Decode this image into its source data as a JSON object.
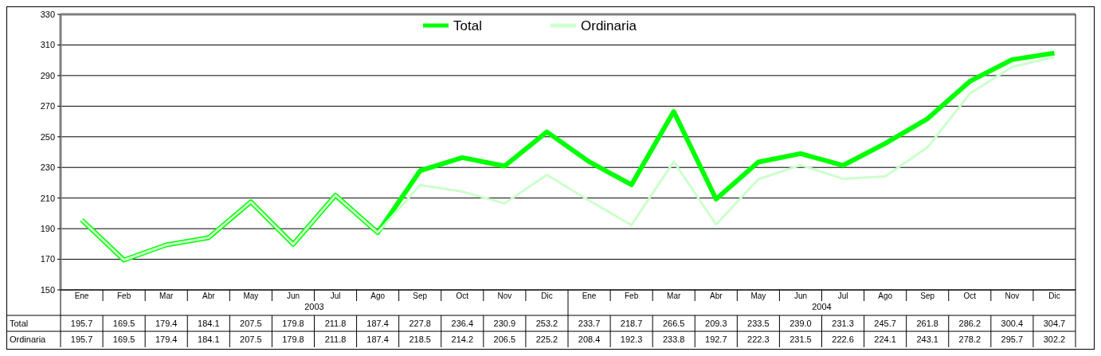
{
  "chart_data": {
    "type": "line",
    "categories": [
      "Ene",
      "Feb",
      "Mar",
      "Abr",
      "May",
      "Jun",
      "Jul",
      "Ago",
      "Sep",
      "Oct",
      "Nov",
      "Dic",
      "Ene",
      "Feb",
      "Mar",
      "Abr",
      "May",
      "Jun",
      "Jul",
      "Ago",
      "Sep",
      "Oct",
      "Nov",
      "Dic"
    ],
    "series": [
      {
        "name": "Total",
        "color": "#00ff00",
        "values": [
          195.7,
          169.5,
          179.4,
          184.1,
          207.5,
          179.8,
          211.8,
          187.4,
          227.8,
          236.4,
          230.9,
          253.2,
          233.7,
          218.7,
          266.5,
          209.3,
          233.5,
          239.0,
          231.3,
          245.7,
          261.8,
          286.2,
          300.4,
          304.7
        ],
        "value_labels": [
          "195.7",
          "169.5",
          "179.4",
          "184.1",
          "207.5",
          "179.8",
          "211.8",
          "187.4",
          "227.8",
          "236.4",
          "230.9",
          "253.2",
          "233.7",
          "218.7",
          "266.5",
          "209.3",
          "233.5",
          "239.0",
          "231.3",
          "245.7",
          "261.8",
          "286.2",
          "300.4",
          "304.7"
        ]
      },
      {
        "name": "Ordinaria",
        "color": "#ccffcc",
        "values": [
          195.7,
          169.5,
          179.4,
          184.1,
          207.5,
          179.8,
          211.8,
          187.4,
          218.5,
          214.2,
          206.5,
          225.2,
          208.4,
          192.3,
          233.8,
          192.7,
          222.3,
          231.5,
          222.6,
          224.1,
          243.1,
          278.2,
          295.7,
          302.2
        ],
        "value_labels": [
          "195.7",
          "169.5",
          "179.4",
          "184.1",
          "207.5",
          "179.8",
          "211.8",
          "187.4",
          "218.5",
          "214.2",
          "206.5",
          "225.2",
          "208.4",
          "192.3",
          "233.8",
          "192.7",
          "222.3",
          "231.5",
          "222.6",
          "224.1",
          "243.1",
          "278.2",
          "295.7",
          "302.2"
        ]
      }
    ],
    "annotations": [
      "2003",
      "2004"
    ],
    "ylim": [
      150,
      330
    ],
    "yticks": [
      150,
      170,
      190,
      210,
      230,
      250,
      270,
      290,
      310,
      330
    ],
    "grid": "y",
    "legend": "top",
    "marker": "none",
    "line_style": "solid"
  }
}
